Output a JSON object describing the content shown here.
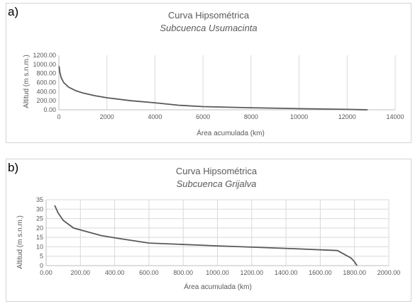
{
  "chart_data": [
    {
      "panel_label": "a)",
      "type": "line",
      "title": "Curva Hipsométrica",
      "subtitle": "Subcuenca Usumacinta",
      "xlabel": "Área acumulada (km)",
      "ylabel": "Altitud (m s.n.m.)",
      "xlim": [
        0,
        14000
      ],
      "ylim": [
        0,
        1200
      ],
      "x_ticks": [
        0,
        2000,
        4000,
        6000,
        8000,
        10000,
        12000,
        14000
      ],
      "x_tick_labels": [
        "0",
        "2000",
        "4000",
        "6000",
        "8000",
        "10000",
        "12000",
        "14000"
      ],
      "y_ticks": [
        0,
        200,
        400,
        600,
        800,
        1000,
        1200
      ],
      "y_tick_labels": [
        "0.00",
        "200.00",
        "400.00",
        "600.00",
        "800.00",
        "1000.00",
        "1200.00"
      ],
      "grid": "vertical",
      "series": [
        {
          "color": "#595959",
          "x": [
            10,
            40,
            100,
            200,
            400,
            700,
            1000,
            1500,
            2000,
            3000,
            4000,
            5000,
            6000,
            8000,
            10000,
            12000,
            12850
          ],
          "y": [
            960,
            820,
            700,
            600,
            500,
            420,
            370,
            310,
            265,
            200,
            155,
            100,
            70,
            45,
            25,
            10,
            0
          ]
        }
      ]
    },
    {
      "panel_label": "b)",
      "type": "line",
      "title": "Curva Hipsométrica",
      "subtitle": "Subcuenca Grijalva",
      "xlabel": "Área acumulada (km)",
      "ylabel": "Altitud (m s.n.m.)",
      "xlim": [
        0,
        2000
      ],
      "ylim": [
        0,
        35
      ],
      "x_ticks": [
        0,
        200,
        400,
        600,
        800,
        1000,
        1200,
        1400,
        1600,
        1800,
        2000
      ],
      "x_tick_labels": [
        "0.00",
        "200.00",
        "400.00",
        "600.00",
        "800.00",
        "1000.00",
        "1200.00",
        "1400.00",
        "1600.00",
        "1800.00",
        "2000.00"
      ],
      "y_ticks": [
        0,
        5,
        10,
        15,
        20,
        25,
        30,
        35
      ],
      "y_tick_labels": [
        "0",
        "5",
        "10",
        "15",
        "20",
        "25",
        "30",
        "35"
      ],
      "grid": "both",
      "series": [
        {
          "color": "#595959",
          "x": [
            50,
            70,
            100,
            160,
            320,
            420,
            600,
            1000,
            1450,
            1700,
            1780,
            1800,
            1815
          ],
          "y": [
            32,
            28,
            24,
            20,
            16,
            14.5,
            12,
            10.5,
            9,
            8,
            4,
            2,
            0
          ]
        }
      ]
    }
  ]
}
